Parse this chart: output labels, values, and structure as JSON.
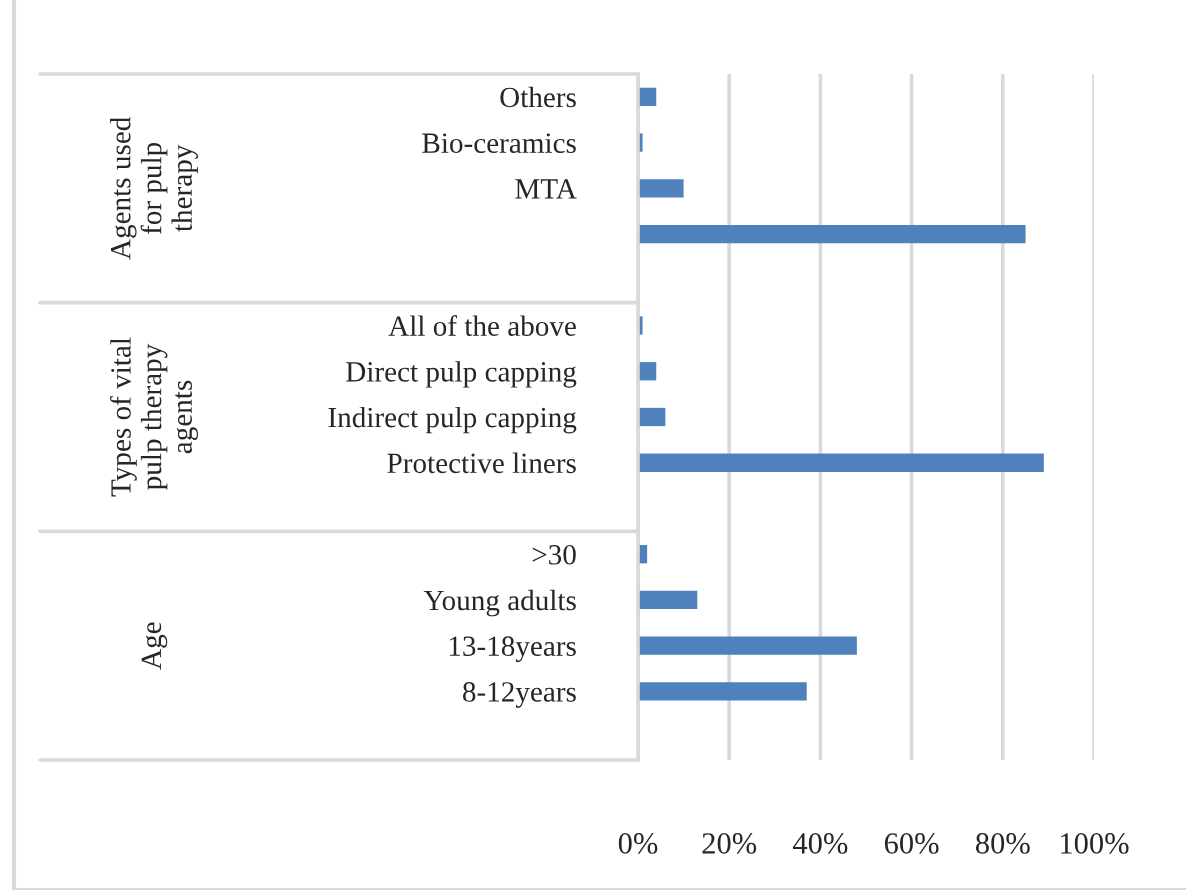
{
  "chart_data": {
    "type": "bar",
    "orientation": "horizontal",
    "categories": [
      "Others",
      "Bio-ceramics",
      "MTA",
      null,
      null,
      "All of the above",
      "Direct pulp capping",
      "Indirect pulp capping",
      "Protective liners",
      null,
      ">30",
      "Young adults",
      "13-18years",
      "8-12years",
      null
    ],
    "values": [
      4,
      1,
      10,
      85,
      null,
      1,
      4,
      6,
      89,
      null,
      2,
      13,
      48,
      37,
      null
    ],
    "color": "#4f81bd",
    "annotations": [
      "Agents used\nfor pulp\ntherapy",
      "Types of vital\npulp therapy\nagents",
      "Age"
    ],
    "xlim": [
      0,
      100
    ],
    "xticks": [
      {
        "value": 0,
        "label": "0%"
      },
      {
        "value": 20,
        "label": "20%"
      },
      {
        "value": 40,
        "label": "40%"
      },
      {
        "value": 60,
        "label": "60%"
      },
      {
        "value": 80,
        "label": "80%"
      },
      {
        "value": 100,
        "label": "100%"
      }
    ],
    "grid": "x"
  }
}
